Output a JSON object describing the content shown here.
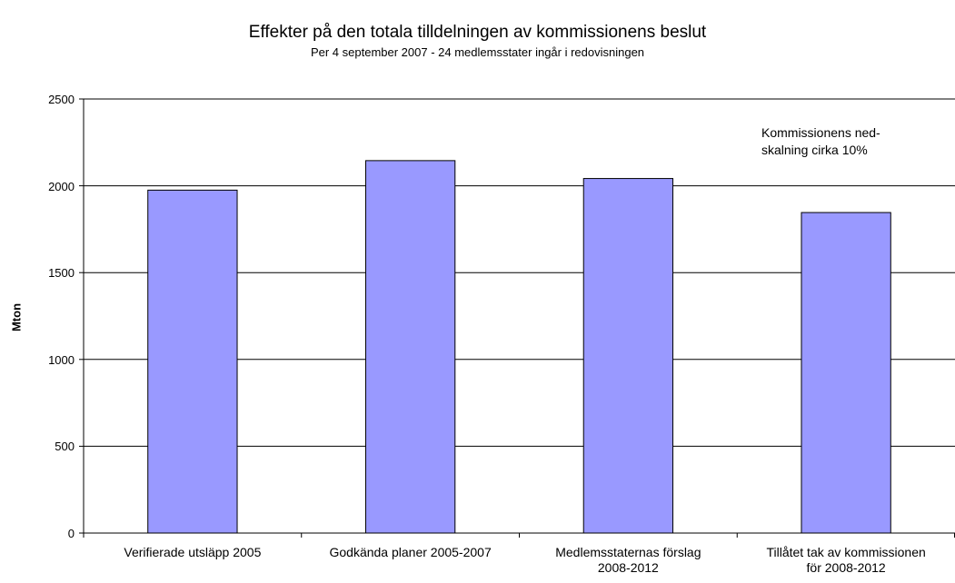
{
  "chart_data": {
    "type": "bar",
    "title": "Effekter på den totala tilldelningen av kommissionens beslut",
    "subtitle": "Per 4 september 2007 - 24 medlemsstater ingår i redovisningen",
    "y_label": "Mton",
    "annotation": "Kommissionens ned-\nskalning cirka 10%",
    "categories": [
      "Verifierade utsläpp 2005",
      "Godkända planer 2005-2007",
      "Medlemsstaternas förslag\n2008-2012",
      "Tillåtet tak av kommissionen\nför 2008-2012"
    ],
    "values": [
      1975,
      2145,
      2042,
      1846
    ],
    "color": "#9999ff",
    "ylim": [
      0,
      2500
    ],
    "yticks": [
      0,
      500,
      1000,
      1500,
      2000,
      2500
    ],
    "grid": true
  }
}
